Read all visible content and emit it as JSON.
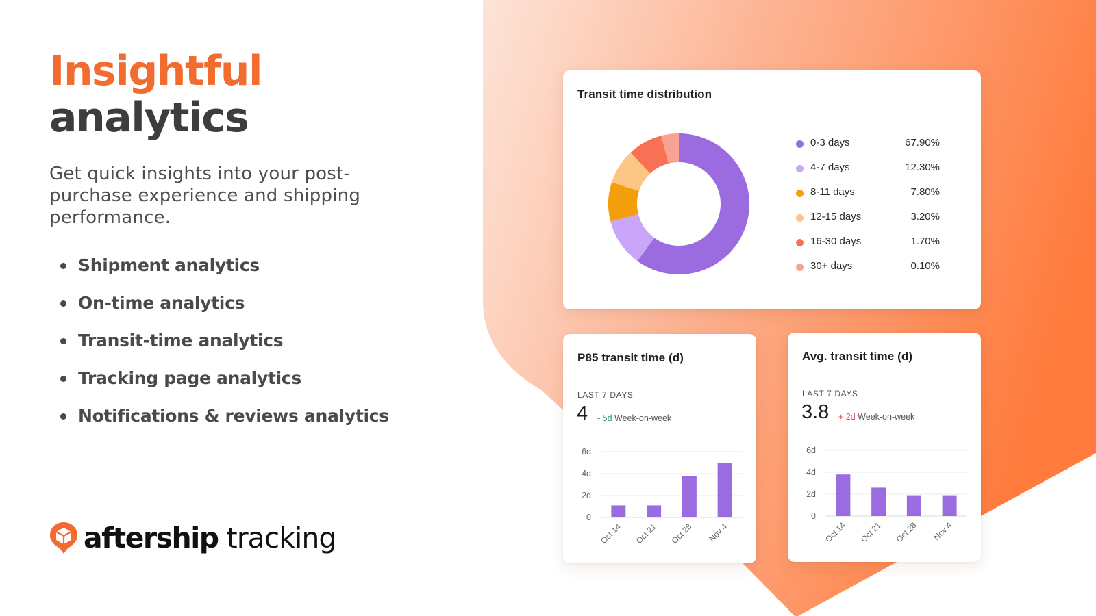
{
  "hero": {
    "title_line1": "Insightful",
    "title_line2": "analytics",
    "subtitle": "Get quick insights into your post-purchase experience and shipping performance.",
    "features": [
      "Shipment analytics",
      "On-time analytics",
      "Transit-time analytics",
      "Tracking page analytics",
      "Notifications & reviews analytics"
    ]
  },
  "brand": {
    "name_bold": "aftership",
    "name_light": "tracking",
    "icon": "box-logo-icon"
  },
  "colors": {
    "brand_orange": "#f26b2f",
    "gradient_light": "#fde0d2",
    "gradient_dark": "#ff7a3d",
    "bar_purple": "#9b6ce0"
  },
  "distribution": {
    "title": "Transit time distribution",
    "chart_data": {
      "type": "pie",
      "donut": true,
      "categories": [
        "0-3 days",
        "4-7 days",
        "8-11 days",
        "12-15 days",
        "16-30 days",
        "30+ days"
      ],
      "values": [
        67.9,
        12.3,
        7.8,
        3.2,
        1.7,
        0.1
      ],
      "value_labels": [
        "67.90%",
        "12.30%",
        "7.80%",
        "3.20%",
        "1.70%",
        "0.10%"
      ],
      "colors": [
        "#9b6ce0",
        "#c9a6f7",
        "#f59e0b",
        "#fcc685",
        "#f87155",
        "#f8a294"
      ],
      "legend": "right"
    }
  },
  "p85": {
    "title": "P85 transit time (d)",
    "period": "LAST 7 DAYS",
    "value": "4",
    "delta_value": "- 5d",
    "delta_label": "Week-on-week",
    "chart_data": {
      "type": "bar",
      "categories": [
        "Oct 14",
        "Oct 21",
        "Oct 28",
        "Nov 4"
      ],
      "values": [
        1.1,
        1.1,
        3.8,
        5.0
      ],
      "yticks": [
        "0",
        "2d",
        "4d",
        "6d"
      ],
      "ylim": [
        0,
        6
      ],
      "grid": true
    }
  },
  "avg": {
    "title": "Avg. transit time (d)",
    "period": "LAST 7 DAYS",
    "value": "3.8",
    "delta_value": "+ 2d",
    "delta_label": "Week-on-week",
    "chart_data": {
      "type": "bar",
      "categories": [
        "Oct 14",
        "Oct 21",
        "Oct 28",
        "Nov 4"
      ],
      "values": [
        3.8,
        2.6,
        1.9,
        1.9
      ],
      "yticks": [
        "0",
        "2d",
        "4d",
        "6d"
      ],
      "ylim": [
        0,
        6
      ],
      "grid": true
    }
  }
}
